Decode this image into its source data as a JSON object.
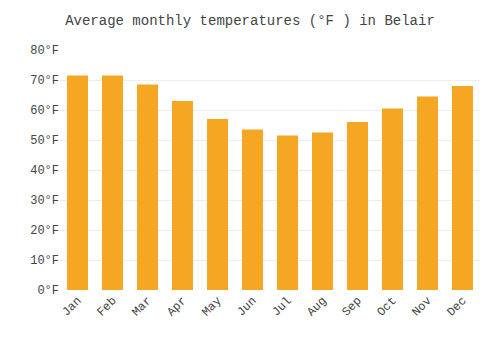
{
  "chart_data": {
    "type": "bar",
    "title": "Average monthly temperatures (°F ) in Belair",
    "categories": [
      "Jan",
      "Feb",
      "Mar",
      "Apr",
      "May",
      "Jun",
      "Jul",
      "Aug",
      "Sep",
      "Oct",
      "Nov",
      "Dec"
    ],
    "values": [
      71.5,
      71.5,
      68.5,
      63.0,
      57.0,
      53.5,
      51.5,
      52.5,
      56.0,
      60.5,
      64.5,
      68.0
    ],
    "color": "#F5A623",
    "ylim": [
      0,
      80
    ],
    "yticks": [
      {
        "value": 0,
        "label": "0°F"
      },
      {
        "value": 10,
        "label": "10°F"
      },
      {
        "value": 20,
        "label": "20°F"
      },
      {
        "value": 30,
        "label": "30°F"
      },
      {
        "value": 40,
        "label": "40°F"
      },
      {
        "value": 50,
        "label": "50°F"
      },
      {
        "value": 60,
        "label": "60°F"
      },
      {
        "value": 70,
        "label": "70°F"
      },
      {
        "value": 80,
        "label": "80°F"
      }
    ],
    "grid": true
  }
}
